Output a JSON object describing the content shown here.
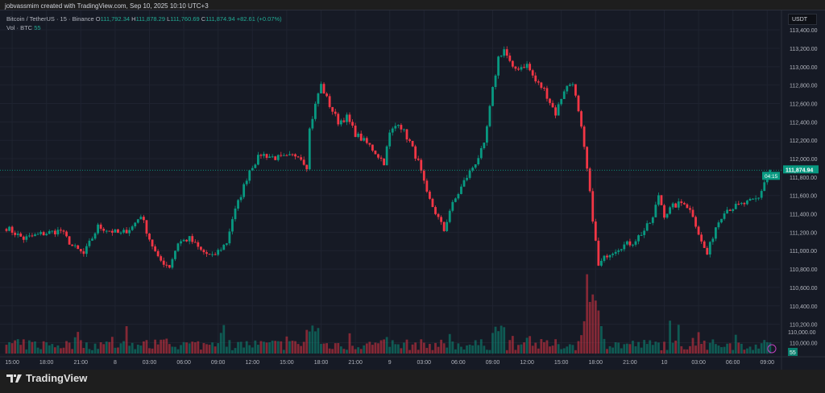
{
  "header": {
    "credit": "jobvassmim created with TradingView.com, Sep 10, 2025 10:10 UTC+3"
  },
  "legend": {
    "symbol": "Bitcoin / TetherUS · 15 · Binance",
    "o_label": "O",
    "o": "111,792.34",
    "h_label": "H",
    "h": "111,878.29",
    "l_label": "L",
    "l": "111,760.69",
    "c_label": "C",
    "c": "111,874.94",
    "change": "+82.61 (+0.07%)",
    "vol_label": "Vol · BTC",
    "vol": "55"
  },
  "currency": "USDT",
  "footer": {
    "brand": "TradingView"
  },
  "colors": {
    "up": "#089981",
    "down": "#f23645",
    "bg": "#161a25"
  },
  "chart_data": {
    "type": "candlestick",
    "ylim": [
      109950,
      113450
    ],
    "y_ticks": [
      113400,
      113200,
      113000,
      112800,
      112600,
      112400,
      112200,
      112000,
      111800,
      111600,
      111400,
      111200,
      111000,
      110800,
      110600,
      110400,
      110200,
      110000
    ],
    "y_tick_labels": [
      "113,400.00",
      "113,200.00",
      "113,000.00",
      "112,800.00",
      "112,600.00",
      "112,400.00",
      "112,200.00",
      "112,000.00",
      "111,800.00",
      "111,600.00",
      "111,400.00",
      "111,200.00",
      "111,000.00",
      "110,800.00",
      "110,600.00",
      "110,400.00",
      "110,200.00",
      "110,000.00"
    ],
    "x_tick_labels": [
      "15:00",
      "18:00",
      "21:00",
      "8",
      "03:00",
      "06:00",
      "09:00",
      "12:00",
      "15:00",
      "18:00",
      "21:00",
      "9",
      "03:00",
      "06:00",
      "09:00",
      "12:00",
      "15:00",
      "18:00",
      "21:00",
      "10",
      "03:00",
      "06:00",
      "09:00"
    ],
    "candles_per_tick": 12,
    "first_tick_index": 2,
    "candle_count": 268,
    "close_waypoints": [
      [
        0,
        111250
      ],
      [
        6,
        111130
      ],
      [
        12,
        111180
      ],
      [
        19,
        111220
      ],
      [
        23,
        111050
      ],
      [
        27,
        110960
      ],
      [
        32,
        111260
      ],
      [
        36,
        111220
      ],
      [
        40,
        111180
      ],
      [
        44,
        111260
      ],
      [
        47,
        111390
      ],
      [
        50,
        111130
      ],
      [
        53,
        110910
      ],
      [
        57,
        110830
      ],
      [
        60,
        111090
      ],
      [
        64,
        111130
      ],
      [
        68,
        111000
      ],
      [
        72,
        110930
      ],
      [
        77,
        111090
      ],
      [
        79,
        111350
      ],
      [
        82,
        111610
      ],
      [
        85,
        111880
      ],
      [
        89,
        112050
      ],
      [
        94,
        112010
      ],
      [
        98,
        112010
      ],
      [
        102,
        112050
      ],
      [
        105,
        111920
      ],
      [
        106,
        112320
      ],
      [
        109,
        112710
      ],
      [
        110,
        112800
      ],
      [
        113,
        112580
      ],
      [
        116,
        112400
      ],
      [
        119,
        112450
      ],
      [
        122,
        112270
      ],
      [
        127,
        112140
      ],
      [
        132,
        111960
      ],
      [
        134,
        112270
      ],
      [
        137,
        112400
      ],
      [
        141,
        112180
      ],
      [
        144,
        111960
      ],
      [
        147,
        111610
      ],
      [
        151,
        111350
      ],
      [
        153,
        111220
      ],
      [
        155,
        111440
      ],
      [
        160,
        111750
      ],
      [
        164,
        111960
      ],
      [
        167,
        112140
      ],
      [
        170,
        112750
      ],
      [
        172,
        113100
      ],
      [
        174,
        113190
      ],
      [
        177,
        112970
      ],
      [
        182,
        113020
      ],
      [
        185,
        112840
      ],
      [
        188,
        112750
      ],
      [
        192,
        112490
      ],
      [
        195,
        112750
      ],
      [
        198,
        112840
      ],
      [
        201,
        112320
      ],
      [
        203,
        111880
      ],
      [
        205,
        111350
      ],
      [
        207,
        110830
      ],
      [
        210,
        110960
      ],
      [
        215,
        111050
      ],
      [
        219,
        111090
      ],
      [
        223,
        111220
      ],
      [
        226,
        111350
      ],
      [
        228,
        111610
      ],
      [
        230,
        111390
      ],
      [
        233,
        111480
      ],
      [
        237,
        111530
      ],
      [
        240,
        111390
      ],
      [
        243,
        111090
      ],
      [
        245,
        110960
      ],
      [
        248,
        111260
      ],
      [
        251,
        111440
      ],
      [
        255,
        111480
      ],
      [
        260,
        111530
      ],
      [
        263,
        111570
      ],
      [
        265,
        111750
      ],
      [
        267,
        111874.94
      ]
    ],
    "last_price": 111874.94,
    "last_price_label": "111,874.94",
    "countdown": "04:15",
    "volume_last": "55",
    "volume_axis_label": "110,000.00"
  }
}
